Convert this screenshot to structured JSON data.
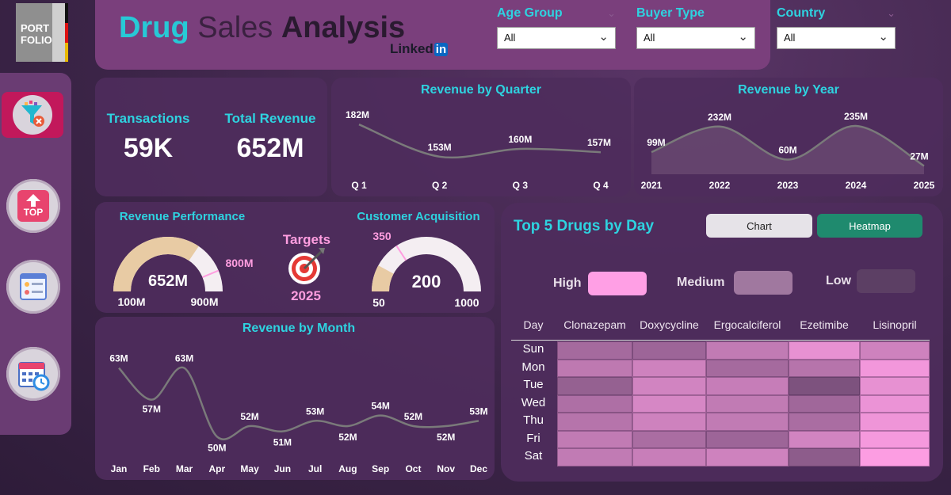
{
  "logo": {
    "line1": "PORT",
    "line2": "FOLIO"
  },
  "header": {
    "title_part1": "Drug",
    "title_part2": "Sales",
    "title_part3": "Analysis",
    "linkedin_text": "Linked",
    "linkedin_badge": "in"
  },
  "filters": [
    {
      "label": "Age Group",
      "value": "All"
    },
    {
      "label": "Buyer Type",
      "value": "All"
    },
    {
      "label": "Country",
      "value": "All"
    }
  ],
  "kpis": {
    "transactions_label": "Transactions",
    "transactions_value": "59K",
    "revenue_label": "Total Revenue",
    "revenue_value": "652M"
  },
  "revenue_performance": {
    "title": "Revenue Performance",
    "value_label": "652M",
    "min_label": "100M",
    "max_label": "900M",
    "target_label": "800M",
    "value": 652,
    "min": 100,
    "max": 900,
    "target": 800
  },
  "targets": {
    "label": "Targets",
    "year": "2025"
  },
  "customer_acquisition": {
    "title": "Customer Acquisition",
    "value_label": "200",
    "min_label": "50",
    "max_label": "1000",
    "target_label": "350",
    "value": 200,
    "min": 50,
    "max": 1000,
    "target": 350
  },
  "sidebar": {
    "top_label": "TOP"
  },
  "colors": {
    "accent": "#2ed3e0",
    "line": "#7a7a7a",
    "gauge_fill": "#e8cba4",
    "gauge_bg": "#f4eef2",
    "target_tick": "#ff9ee0",
    "toggle_active": "#1f8a6e",
    "high": "#ff9fe5",
    "medium": "#a0789f",
    "low": "#5c3f64"
  },
  "chart_data": [
    {
      "type": "line",
      "title": "Revenue by Quarter",
      "categories": [
        "Q 1",
        "Q 2",
        "Q 3",
        "Q 4"
      ],
      "values": [
        182,
        153,
        160,
        157
      ],
      "labels": [
        "182M",
        "153M",
        "160M",
        "157M"
      ],
      "units": "M"
    },
    {
      "type": "area",
      "title": "Revenue by Year",
      "categories": [
        "2021",
        "2022",
        "2023",
        "2024",
        "2025"
      ],
      "values": [
        99,
        232,
        60,
        235,
        27
      ],
      "labels": [
        "99M",
        "232M",
        "60M",
        "235M",
        "27M"
      ],
      "units": "M"
    },
    {
      "type": "line",
      "title": "Revenue by Month",
      "categories": [
        "Jan",
        "Feb",
        "Mar",
        "Apr",
        "May",
        "Jun",
        "Jul",
        "Aug",
        "Sep",
        "Oct",
        "Nov",
        "Dec"
      ],
      "values": [
        63,
        57,
        63,
        50,
        52,
        51,
        53,
        52,
        54,
        52,
        52,
        53
      ],
      "labels": [
        "63M",
        "57M",
        "63M",
        "50M",
        "52M",
        "51M",
        "53M",
        "52M",
        "54M",
        "52M",
        "52M",
        "53M"
      ],
      "units": "M"
    },
    {
      "type": "heatmap",
      "title": "Top 5 Drugs by Day",
      "columns": [
        "Clonazepam",
        "Doxycycline",
        "Ergocalciferol",
        "Ezetimibe",
        "Lisinopril"
      ],
      "rows": [
        "Sun",
        "Mon",
        "Tue",
        "Wed",
        "Thu",
        "Fri",
        "Sat"
      ],
      "row_header": "Day",
      "intensity": [
        [
          0.45,
          0.4,
          0.62,
          0.85,
          0.7
        ],
        [
          0.6,
          0.7,
          0.45,
          0.55,
          0.92
        ],
        [
          0.35,
          0.72,
          0.65,
          0.2,
          0.85
        ],
        [
          0.5,
          0.75,
          0.62,
          0.42,
          0.88
        ],
        [
          0.55,
          0.7,
          0.62,
          0.48,
          0.9
        ],
        [
          0.62,
          0.48,
          0.4,
          0.72,
          0.94
        ],
        [
          0.62,
          0.66,
          0.7,
          0.3,
          0.98
        ]
      ]
    }
  ],
  "toggles": {
    "chart_label": "Chart",
    "heatmap_label": "Heatmap"
  },
  "legend": {
    "high": "High",
    "medium": "Medium",
    "low": "Low"
  }
}
